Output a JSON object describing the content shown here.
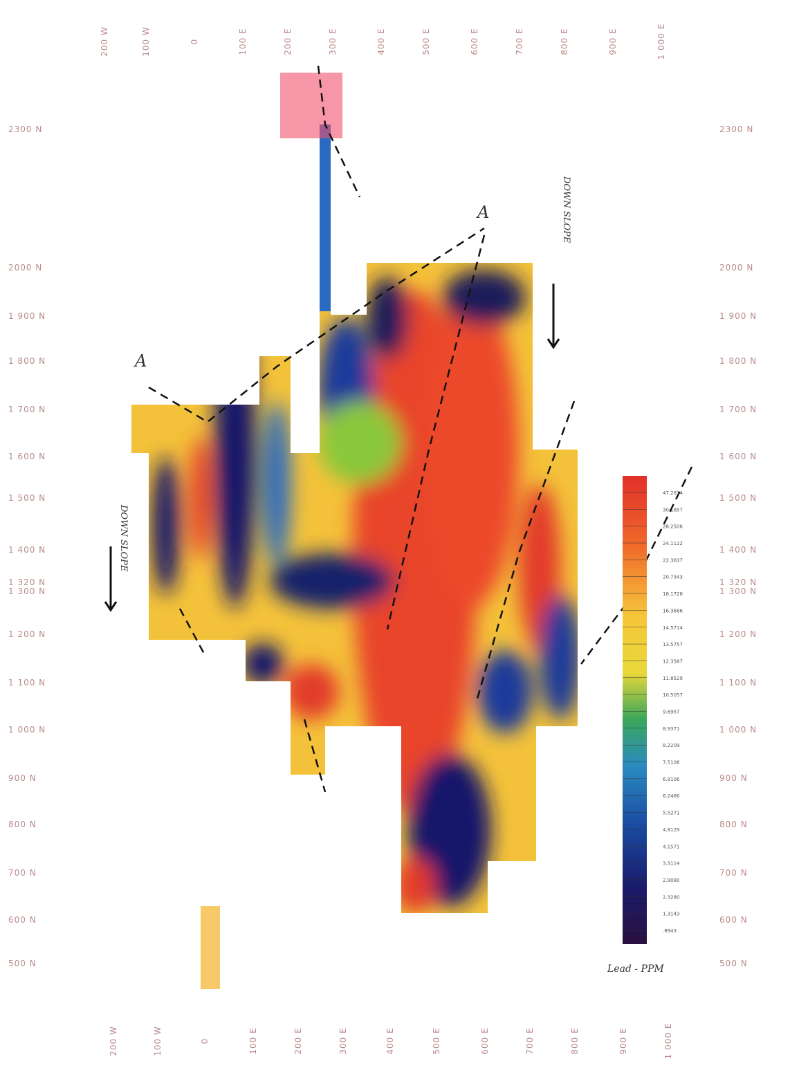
{
  "top_labels": [
    "200 W",
    "100 W",
    "0",
    "100 E",
    "200 E",
    "300 E",
    "400 E",
    "500 E",
    "600 E",
    "700 E",
    "800 E",
    "900 E",
    "1 000 E"
  ],
  "bottom_labels": [
    "200 W",
    "100 W",
    "0",
    "100 E",
    "200 E",
    "300 E",
    "400 E",
    "500 E",
    "600 E",
    "700 E",
    "800 E",
    "900 E",
    "1 000 E"
  ],
  "left_labels": [
    "2300 N",
    "2000 N",
    "1 900 N",
    "1 800 N",
    "1 700 N",
    "1 600 N",
    "1 500 N",
    "1 400 N",
    "1 320 N",
    "1 300 N",
    "1 200 N",
    "1 100 N",
    "1 000 N",
    "900 N",
    "800 N",
    "700 N",
    "600 N",
    "500 N"
  ],
  "right_labels": [
    "2300 N",
    "2000 N",
    "1 900 N",
    "1 800 N",
    "1 700 N",
    "1 600 N",
    "1 500 N",
    "1 400 N",
    "1 320 N",
    "1 300 N",
    "1 200 N",
    "1 100 N",
    "1 000 N",
    "900 N",
    "800 N",
    "700 N",
    "600 N",
    "500 N"
  ],
  "legend": {
    "title": "Lead - PPM",
    "values": [
      "47.2814",
      "30.1857",
      "28.2506",
      "24.1122",
      "22.3637",
      "20.7343",
      "18.1728",
      "16.3686",
      "14.5714",
      "13.5757",
      "12.3587",
      "11.8529",
      "10.5057",
      "9.6957",
      "8.9371",
      "8.2209",
      "7.5106",
      "6.8106",
      "6.2466",
      "5.5271",
      "4.8129",
      "4.1571",
      "3.3114",
      "2.9080",
      "2.3280",
      "1.3143",
      ".8943"
    ]
  },
  "annotations": {
    "down_slope_left": "DOWN SLOPE",
    "down_slope_right": "DOWN SLOPE",
    "section_left": "A",
    "section_right": "A"
  }
}
